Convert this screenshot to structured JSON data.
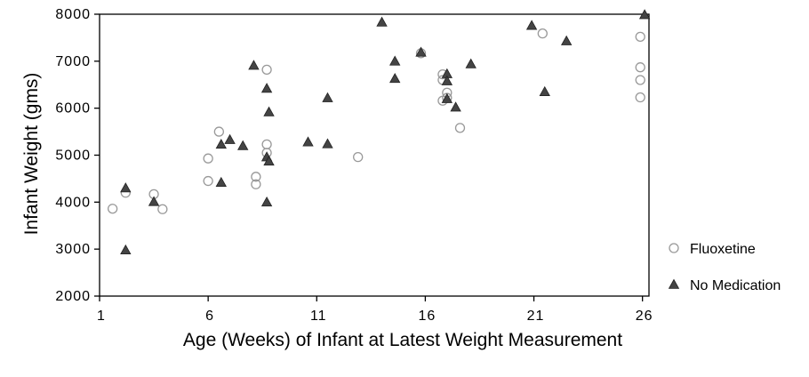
{
  "chart_data": {
    "type": "scatter",
    "xlabel": "Age (Weeks) of Infant at Latest Weight Measurement",
    "ylabel": "Infant Weight (gms)",
    "xlim": [
      1,
      26.3
    ],
    "ylim": [
      2000,
      8000
    ],
    "x_ticks": [
      "1",
      "6",
      "11",
      "16",
      "21",
      "26"
    ],
    "y_ticks": [
      "2000",
      "3000",
      "4000",
      "5000",
      "6000",
      "7000",
      "8000"
    ],
    "x_tick_values": [
      1,
      6,
      11,
      16,
      21,
      26
    ],
    "y_tick_values": [
      2000,
      3000,
      4000,
      5000,
      6000,
      7000,
      8000
    ],
    "grid": false,
    "legend_position": "right",
    "series": [
      {
        "name": "Fluoxetine",
        "marker": "open-circle",
        "color": "#999999",
        "points": [
          {
            "x": 1.6,
            "y": 3860
          },
          {
            "x": 2.2,
            "y": 4200
          },
          {
            "x": 3.5,
            "y": 4170
          },
          {
            "x": 3.9,
            "y": 3850
          },
          {
            "x": 6.0,
            "y": 4930
          },
          {
            "x": 6.0,
            "y": 4450
          },
          {
            "x": 6.5,
            "y": 5500
          },
          {
            "x": 8.2,
            "y": 4540
          },
          {
            "x": 8.2,
            "y": 4380
          },
          {
            "x": 8.7,
            "y": 6820
          },
          {
            "x": 8.7,
            "y": 5230
          },
          {
            "x": 8.7,
            "y": 5050
          },
          {
            "x": 12.9,
            "y": 4960
          },
          {
            "x": 15.8,
            "y": 7170
          },
          {
            "x": 16.8,
            "y": 6720
          },
          {
            "x": 16.8,
            "y": 6600
          },
          {
            "x": 16.8,
            "y": 6160
          },
          {
            "x": 17.0,
            "y": 6330
          },
          {
            "x": 17.0,
            "y": 6220
          },
          {
            "x": 17.6,
            "y": 5580
          },
          {
            "x": 21.4,
            "y": 7590
          },
          {
            "x": 25.9,
            "y": 7520
          },
          {
            "x": 25.9,
            "y": 6870
          },
          {
            "x": 25.9,
            "y": 6600
          },
          {
            "x": 25.9,
            "y": 6230
          }
        ]
      },
      {
        "name": "No Medication",
        "marker": "filled-triangle",
        "color": "#444444",
        "points": [
          {
            "x": 2.2,
            "y": 4300
          },
          {
            "x": 2.2,
            "y": 2980
          },
          {
            "x": 3.5,
            "y": 4010
          },
          {
            "x": 6.6,
            "y": 5230
          },
          {
            "x": 6.6,
            "y": 4420
          },
          {
            "x": 7.0,
            "y": 5330
          },
          {
            "x": 7.6,
            "y": 5200
          },
          {
            "x": 8.1,
            "y": 6910
          },
          {
            "x": 8.7,
            "y": 6420
          },
          {
            "x": 8.8,
            "y": 5920
          },
          {
            "x": 8.7,
            "y": 4960
          },
          {
            "x": 8.8,
            "y": 4870
          },
          {
            "x": 8.7,
            "y": 4000
          },
          {
            "x": 10.6,
            "y": 5280
          },
          {
            "x": 11.5,
            "y": 6220
          },
          {
            "x": 11.5,
            "y": 5240
          },
          {
            "x": 14.0,
            "y": 7830
          },
          {
            "x": 14.6,
            "y": 7000
          },
          {
            "x": 14.6,
            "y": 6630
          },
          {
            "x": 15.8,
            "y": 7190
          },
          {
            "x": 17.0,
            "y": 6730
          },
          {
            "x": 17.0,
            "y": 6580
          },
          {
            "x": 17.0,
            "y": 6200
          },
          {
            "x": 17.4,
            "y": 6020
          },
          {
            "x": 18.1,
            "y": 6940
          },
          {
            "x": 20.9,
            "y": 7760
          },
          {
            "x": 21.5,
            "y": 6350
          },
          {
            "x": 22.5,
            "y": 7430
          },
          {
            "x": 26.1,
            "y": 7990
          }
        ]
      }
    ]
  }
}
